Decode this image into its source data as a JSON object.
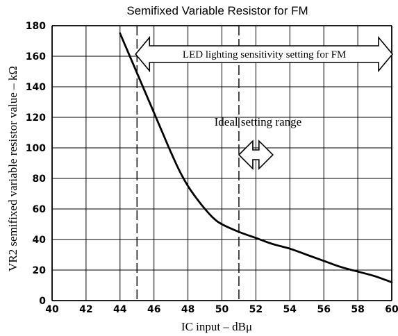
{
  "chart_data": {
    "type": "line",
    "title": "Semifixed Variable Resistor for FM",
    "xlabel": "IC input  –  dBμ",
    "ylabel": "VR2 semifixed variable resistor value  –  kΩ",
    "xlim": [
      40,
      60
    ],
    "ylim": [
      0,
      180
    ],
    "xticks": [
      "40",
      "42",
      "44",
      "46",
      "48",
      "50",
      "52",
      "54",
      "56",
      "58",
      "60"
    ],
    "yticks": [
      "0",
      "20",
      "40",
      "60",
      "80",
      "100",
      "120",
      "140",
      "160",
      "180"
    ],
    "grid": true,
    "series": [
      {
        "x": [
          44,
          44.5,
          45,
          45.5,
          46,
          46.5,
          47,
          47.5,
          48,
          48.5,
          49,
          49.5,
          50,
          51,
          52,
          53,
          54,
          55,
          56,
          57,
          58,
          59,
          60
        ],
        "y": [
          175,
          162,
          149,
          136,
          123,
          110,
          97,
          85,
          75,
          67,
          60,
          54,
          50,
          45,
          41,
          37,
          34,
          30,
          26,
          22,
          19,
          16,
          12
        ]
      }
    ],
    "vlines": [
      45,
      51
    ],
    "annotations": [
      {
        "text": "LED lighting sensitivity setting for FM",
        "x_range": [
          45,
          60
        ],
        "y": 160
      },
      {
        "text": "Ideal setting range",
        "x_range": [
          51,
          53
        ],
        "y": 100
      }
    ]
  }
}
